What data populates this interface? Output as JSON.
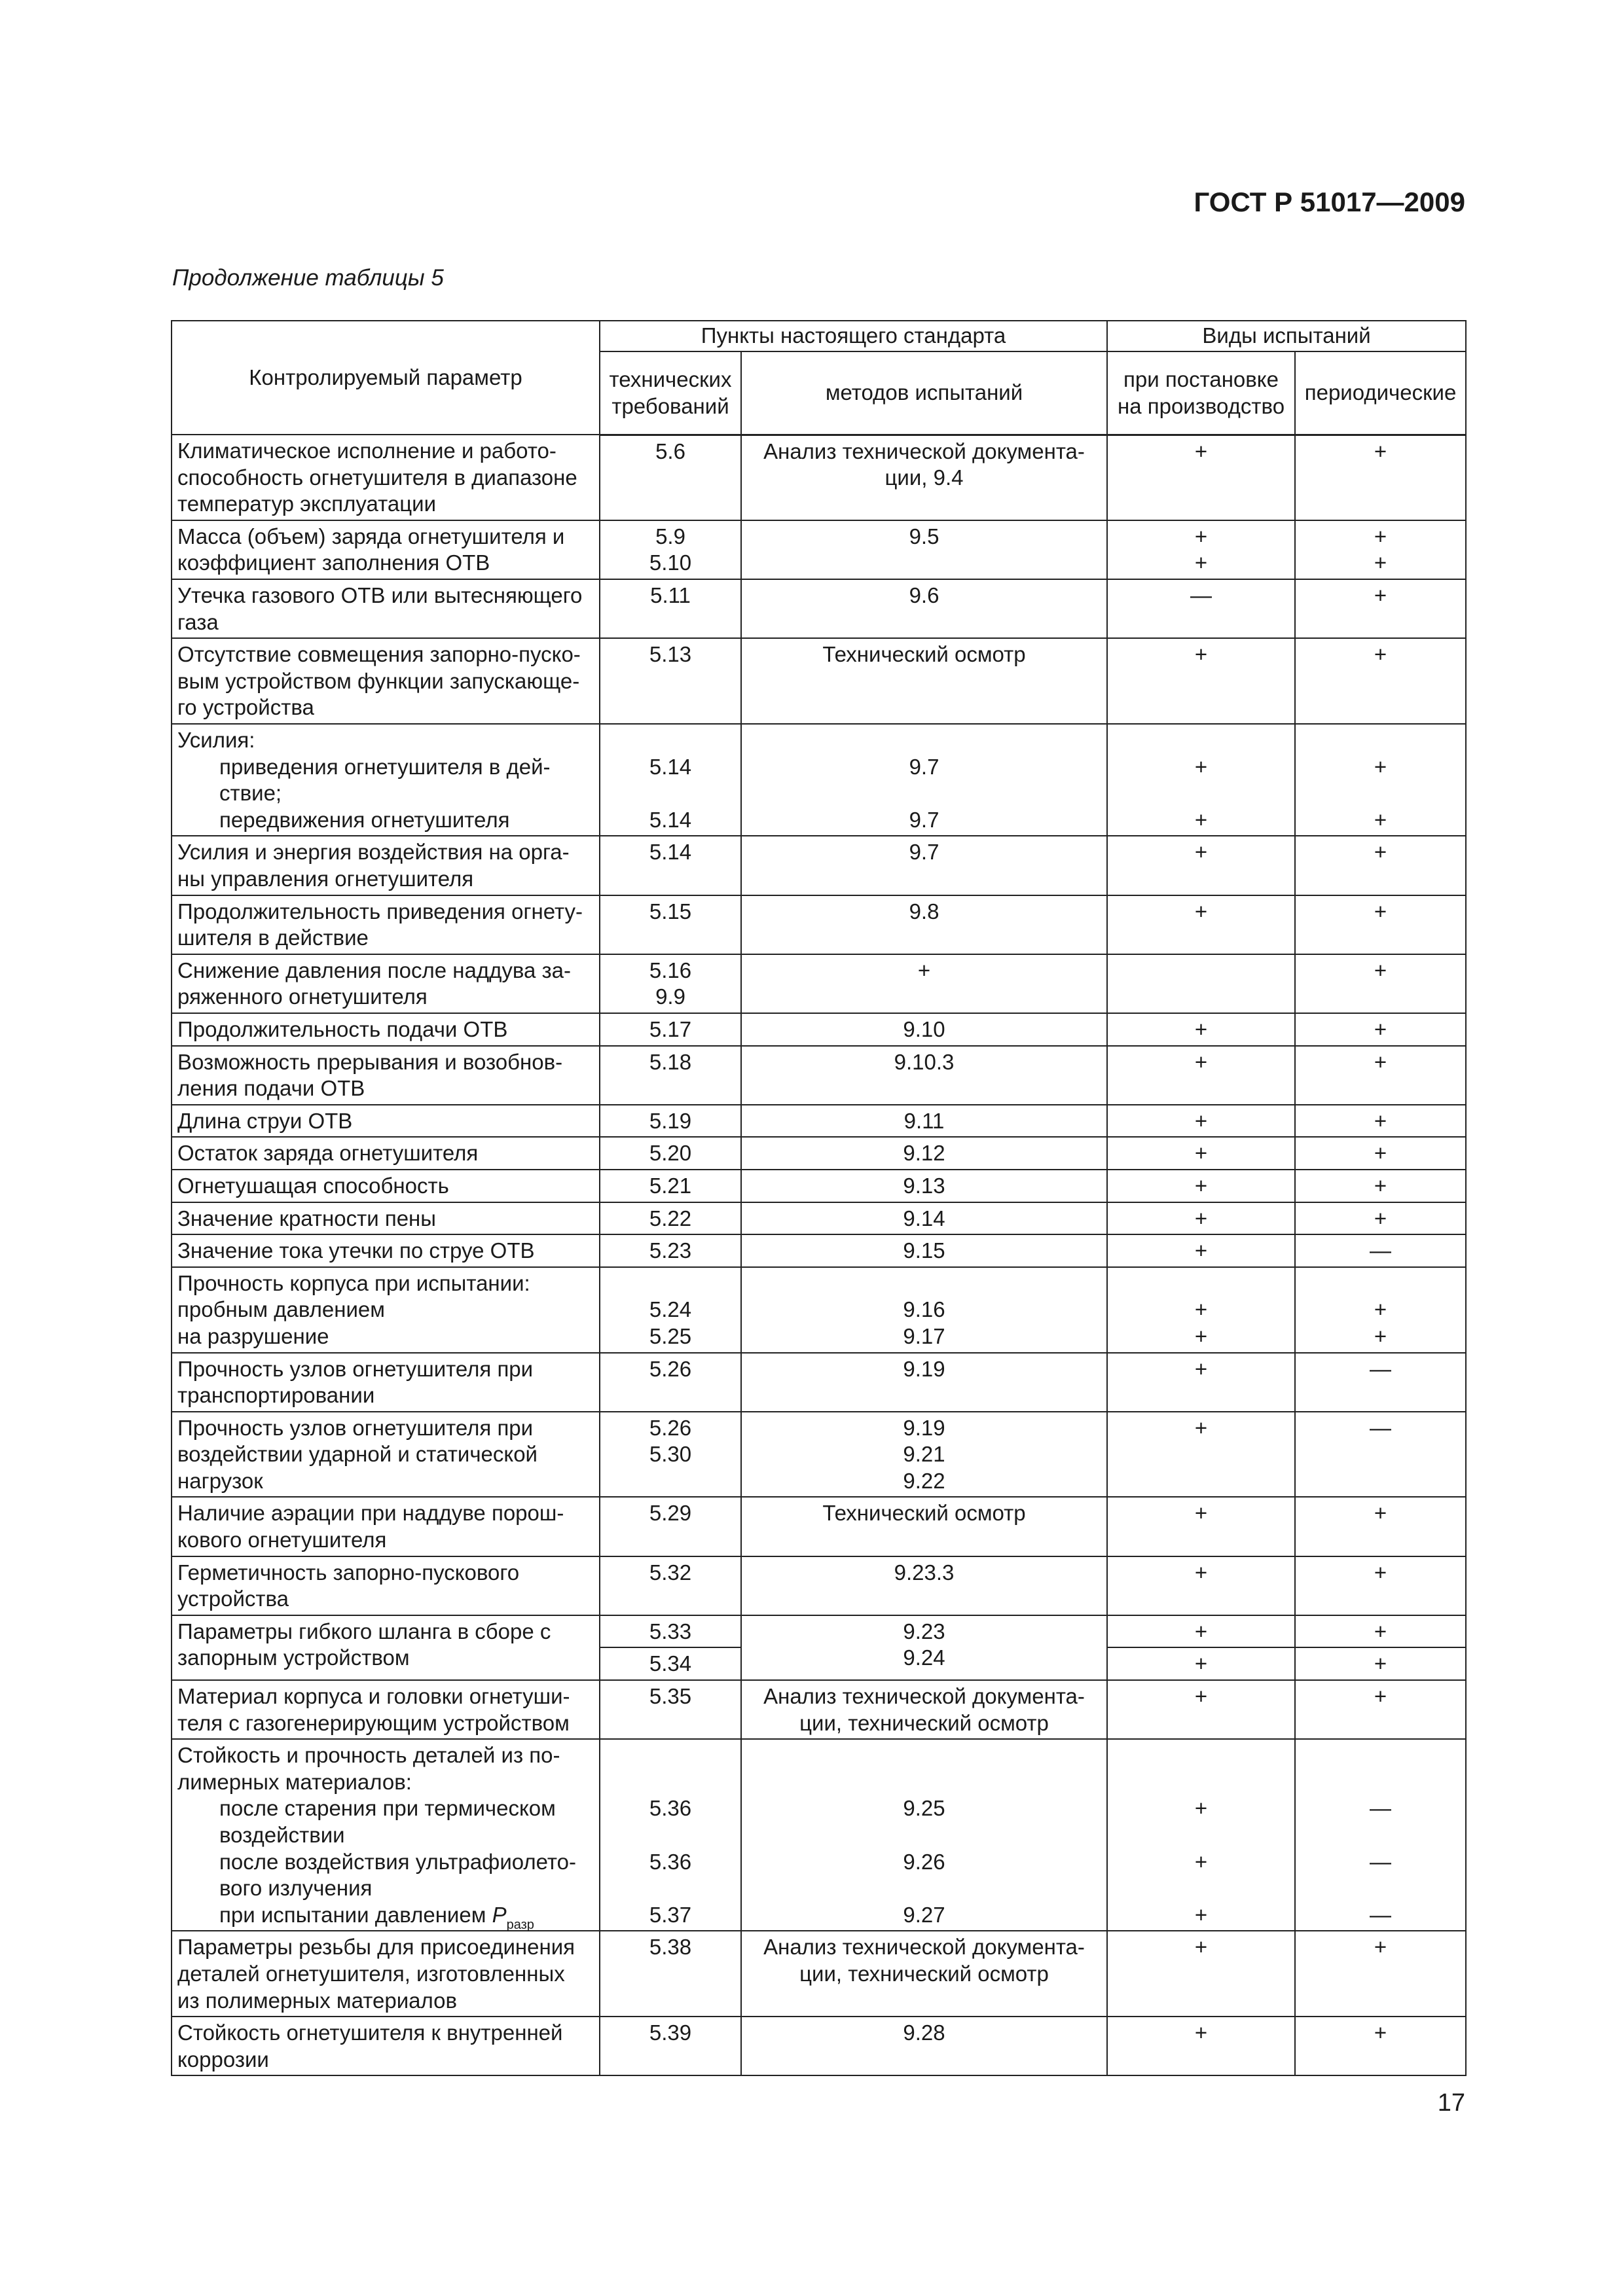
{
  "header": {
    "doc_code": "ГОСТ Р 51017—2009",
    "caption": "Продолжение таблицы 5",
    "page_number": "17"
  },
  "table": {
    "headers": {
      "param": "Контролируемый параметр",
      "clauses": "Пункты настоящего стандарта",
      "tests": "Виды испытаний",
      "req": [
        "технических",
        "требований"
      ],
      "method": [
        "методов испытаний"
      ],
      "prod": [
        "при постановке",
        "на производство"
      ],
      "period": [
        "периодические"
      ]
    },
    "rows": [
      {
        "param": [
          "Климатическое исполнение и работо-",
          "способность огнетушителя в диапазоне",
          "температур эксплуатации"
        ],
        "req": [
          "5.6"
        ],
        "method": [
          "Анализ технической документа-",
          "ции, 9.4"
        ],
        "prod": [
          "+"
        ],
        "period": [
          "+"
        ]
      },
      {
        "param": [
          "Масса (объем) заряда огнетушителя и",
          "коэффициент заполнения ОТВ"
        ],
        "req": [
          "5.9",
          "5.10"
        ],
        "method": [
          "9.5"
        ],
        "prod": [
          "+",
          "+"
        ],
        "period": [
          "+",
          "+"
        ]
      },
      {
        "param": [
          "Утечка газового ОТВ или вытесняющего",
          "газа"
        ],
        "req": [
          "5.11"
        ],
        "method": [
          "9.6"
        ],
        "prod": [
          "—"
        ],
        "period": [
          "+"
        ]
      },
      {
        "param": [
          "Отсутствие совмещения запорно-пуско-",
          "вым устройством функции запускающе-",
          "го устройства"
        ],
        "req": [
          "5.13"
        ],
        "method": [
          "Технический осмотр"
        ],
        "prod": [
          "+"
        ],
        "period": [
          "+"
        ]
      },
      {
        "param": [
          "Усилия:",
          {
            "text": "приведения огнетушителя в дей-",
            "indent": true
          },
          {
            "text": "ствие;",
            "indent": true
          },
          {
            "text": "передвижения огнетушителя",
            "indent": true
          }
        ],
        "req": [
          "",
          "5.14",
          "",
          "5.14"
        ],
        "method": [
          "",
          "9.7",
          "",
          "9.7"
        ],
        "prod": [
          "",
          "+",
          "",
          "+"
        ],
        "period": [
          "",
          "+",
          "",
          "+"
        ]
      },
      {
        "param": [
          "Усилия и энергия воздействия на орга-",
          "ны управления огнетушителя"
        ],
        "req": [
          "5.14"
        ],
        "method": [
          "9.7"
        ],
        "prod": [
          "+"
        ],
        "period": [
          "+"
        ]
      },
      {
        "param": [
          "Продолжительность приведения огнету-",
          "шителя в действие"
        ],
        "req": [
          "5.15"
        ],
        "method": [
          "9.8"
        ],
        "prod": [
          "+"
        ],
        "period": [
          "+"
        ]
      },
      {
        "param": [
          "Снижение давления после наддува за-",
          "ряженного огнетушителя"
        ],
        "req": [
          "5.16",
          "9.9"
        ],
        "method": [
          "+"
        ],
        "prod": [
          ""
        ],
        "period": [
          "+"
        ]
      },
      {
        "param": [
          "Продолжительность подачи ОТВ"
        ],
        "req": [
          "5.17"
        ],
        "method": [
          "9.10"
        ],
        "prod": [
          "+"
        ],
        "period": [
          "+"
        ]
      },
      {
        "param": [
          "Возможность прерывания и возобнов-",
          "ления подачи ОТВ"
        ],
        "req": [
          "5.18"
        ],
        "method": [
          "9.10.3"
        ],
        "prod": [
          "+"
        ],
        "period": [
          "+"
        ]
      },
      {
        "param": [
          "Длина струи ОТВ"
        ],
        "req": [
          "5.19"
        ],
        "method": [
          "9.11"
        ],
        "prod": [
          "+"
        ],
        "period": [
          "+"
        ]
      },
      {
        "param": [
          "Остаток заряда огнетушителя"
        ],
        "req": [
          "5.20"
        ],
        "method": [
          "9.12"
        ],
        "prod": [
          "+"
        ],
        "period": [
          "+"
        ]
      },
      {
        "param": [
          "Огнетушащая способность"
        ],
        "req": [
          "5.21"
        ],
        "method": [
          "9.13"
        ],
        "prod": [
          "+"
        ],
        "period": [
          "+"
        ]
      },
      {
        "param": [
          "Значение кратности пены"
        ],
        "req": [
          "5.22"
        ],
        "method": [
          "9.14"
        ],
        "prod": [
          "+"
        ],
        "period": [
          "+"
        ]
      },
      {
        "param": [
          "Значение тока утечки по струе ОТВ"
        ],
        "req": [
          "5.23"
        ],
        "method": [
          "9.15"
        ],
        "prod": [
          "+"
        ],
        "period": [
          "—"
        ]
      },
      {
        "param": [
          "Прочность корпуса при испытании:",
          " пробным давлением",
          " на разрушение"
        ],
        "req": [
          "",
          "5.24",
          "5.25"
        ],
        "method": [
          "",
          "9.16",
          "9.17"
        ],
        "prod": [
          "",
          "+",
          "+"
        ],
        "period": [
          "",
          "+",
          "+"
        ]
      },
      {
        "param": [
          "Прочность узлов огнетушителя при",
          "транспортировании"
        ],
        "req": [
          "5.26"
        ],
        "method": [
          "9.19"
        ],
        "prod": [
          "+"
        ],
        "period": [
          "—"
        ]
      },
      {
        "param": [
          "Прочность узлов огнетушителя при",
          "воздействии ударной и статической",
          "нагрузок"
        ],
        "req": [
          "5.26",
          "5.30"
        ],
        "method": [
          "9.19",
          "9.21",
          "9.22"
        ],
        "prod": [
          "+"
        ],
        "period": [
          "—"
        ]
      },
      {
        "param": [
          "Наличие аэрации при наддуве порош-",
          "кового огнетушителя"
        ],
        "req": [
          "5.29"
        ],
        "method": [
          "Технический осмотр"
        ],
        "prod": [
          "+"
        ],
        "period": [
          "+"
        ]
      },
      {
        "param": [
          "Герметичность запорно-пускового",
          "устройства"
        ],
        "req": [
          "5.32"
        ],
        "method": [
          "9.23.3"
        ],
        "prod": [
          "+"
        ],
        "period": [
          "+"
        ]
      },
      {
        "param": [
          "Параметры гибкого шланга в сборе с",
          "запорным устройством"
        ],
        "method": [
          "9.23",
          "9.24"
        ],
        "split": [
          {
            "req": [
              "5.33"
            ],
            "prod": [
              "+"
            ],
            "period": [
              "+"
            ]
          },
          {
            "req": [
              "5.34"
            ],
            "prod": [
              "+"
            ],
            "period": [
              "+"
            ]
          }
        ]
      },
      {
        "param": [
          "Материал корпуса и головки огнетуши-",
          "теля с газогенерирующим устройством"
        ],
        "req": [
          "5.35"
        ],
        "method": [
          "Анализ технической документа-",
          "ции, технический осмотр"
        ],
        "prod": [
          "+"
        ],
        "period": [
          "+"
        ]
      },
      {
        "param": [
          "Стойкость и прочность деталей из по-",
          "лимерных материалов:",
          {
            "text": "после старения при термическом",
            "indent": true
          },
          {
            "text": "воздействии",
            "indent": true
          },
          {
            "text": "после воздействия ультрафиолето-",
            "indent": true
          },
          {
            "text": "вого излучения",
            "indent": true
          },
          {
            "text": "при испытании давлением ",
            "indent": true,
            "symbol": "P",
            "subscript": "разр"
          }
        ],
        "req": [
          "",
          "",
          "5.36",
          "",
          "5.36",
          "",
          "5.37"
        ],
        "method": [
          "",
          "",
          "9.25",
          "",
          "9.26",
          "",
          "9.27"
        ],
        "prod": [
          "",
          "",
          "+",
          "",
          "+",
          "",
          "+"
        ],
        "period": [
          "",
          "",
          "—",
          "",
          "—",
          "",
          "—"
        ]
      },
      {
        "param": [
          "Параметры резьбы для присоединения",
          "деталей огнетушителя, изготовленных",
          "из полимерных материалов"
        ],
        "req": [
          "5.38"
        ],
        "method": [
          "Анализ технической документа-",
          "ции, технический осмотр"
        ],
        "prod": [
          "+"
        ],
        "period": [
          "+"
        ]
      },
      {
        "param": [
          "Стойкость огнетушителя к внутренней",
          "коррозии"
        ],
        "req": [
          "5.39"
        ],
        "method": [
          "9.28"
        ],
        "prod": [
          "+"
        ],
        "period": [
          "+"
        ]
      }
    ]
  }
}
